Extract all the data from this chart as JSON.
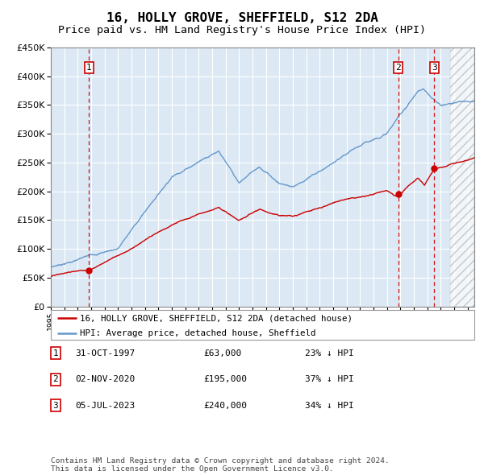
{
  "title": "16, HOLLY GROVE, SHEFFIELD, S12 2DA",
  "subtitle": "Price paid vs. HM Land Registry's House Price Index (HPI)",
  "title_fontsize": 11.5,
  "subtitle_fontsize": 9.5,
  "background_color": "#ffffff",
  "plot_bg_color": "#dce9f5",
  "grid_color": "#ffffff",
  "hpi_line_color": "#6699cc",
  "price_line_color": "#cc0000",
  "marker_color": "#cc0000",
  "vline_color": "#cc0000",
  "ylim": [
    0,
    450000
  ],
  "yticks": [
    0,
    50000,
    100000,
    150000,
    200000,
    250000,
    300000,
    350000,
    400000,
    450000
  ],
  "ytick_labels": [
    "£0",
    "£50K",
    "£100K",
    "£150K",
    "£200K",
    "£250K",
    "£300K",
    "£350K",
    "£400K",
    "£450K"
  ],
  "xlim_start": 1995.0,
  "xlim_end": 2026.5,
  "sale_dates": [
    1997.83,
    2020.84,
    2023.51
  ],
  "sale_prices": [
    63000,
    195000,
    240000
  ],
  "sale_labels": [
    "1",
    "2",
    "3"
  ],
  "legend_line1": "16, HOLLY GROVE, SHEFFIELD, S12 2DA (detached house)",
  "legend_line2": "HPI: Average price, detached house, Sheffield",
  "table_data": [
    [
      "1",
      "31-OCT-1997",
      "£63,000",
      "23% ↓ HPI"
    ],
    [
      "2",
      "02-NOV-2020",
      "£195,000",
      "37% ↓ HPI"
    ],
    [
      "3",
      "05-JUL-2023",
      "£240,000",
      "34% ↓ HPI"
    ]
  ],
  "footer": "Contains HM Land Registry data © Crown copyright and database right 2024.\nThis data is licensed under the Open Government Licence v3.0.",
  "hatch_start": 2024.67
}
